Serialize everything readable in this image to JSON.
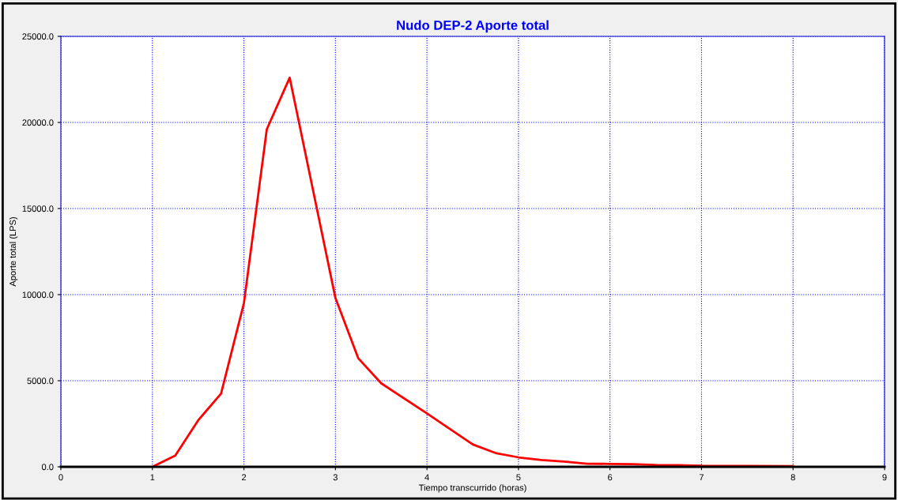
{
  "chart_data": {
    "type": "line",
    "title": "Nudo DEP-2 Aporte total",
    "xlabel": "Tiempo transcurrido (horas)",
    "ylabel": "Aporte total (LPS)",
    "x": [
      1,
      1.25,
      1.5,
      1.75,
      2,
      2.25,
      2.5,
      3,
      3.25,
      3.5,
      4,
      4.5,
      4.75,
      5,
      5.25,
      5.5,
      5.75,
      6,
      6.25,
      6.5,
      6.75,
      7,
      8
    ],
    "series": [
      {
        "color": "#ff0000",
        "values": [
          0,
          650,
          2700,
          4250,
          9500,
          19600,
          22600,
          9800,
          6300,
          4850,
          3100,
          1300,
          800,
          550,
          400,
          300,
          180,
          170,
          150,
          110,
          100,
          60,
          40
        ]
      }
    ],
    "xlim": [
      0,
      9
    ],
    "xticks": [
      0,
      1,
      2,
      3,
      4,
      5,
      6,
      7,
      8,
      9
    ],
    "ylim": [
      0,
      25000
    ],
    "yticks": [
      {
        "value": 0,
        "label": "0.0"
      },
      {
        "value": 5000,
        "label": "5000.0"
      },
      {
        "value": 10000,
        "label": "10000.0"
      },
      {
        "value": 15000,
        "label": "15000.0"
      },
      {
        "value": 20000,
        "label": "20000.0"
      },
      {
        "value": 25000,
        "label": "25000.0"
      }
    ],
    "grid": true,
    "marker": "none",
    "line_style": "solid"
  }
}
